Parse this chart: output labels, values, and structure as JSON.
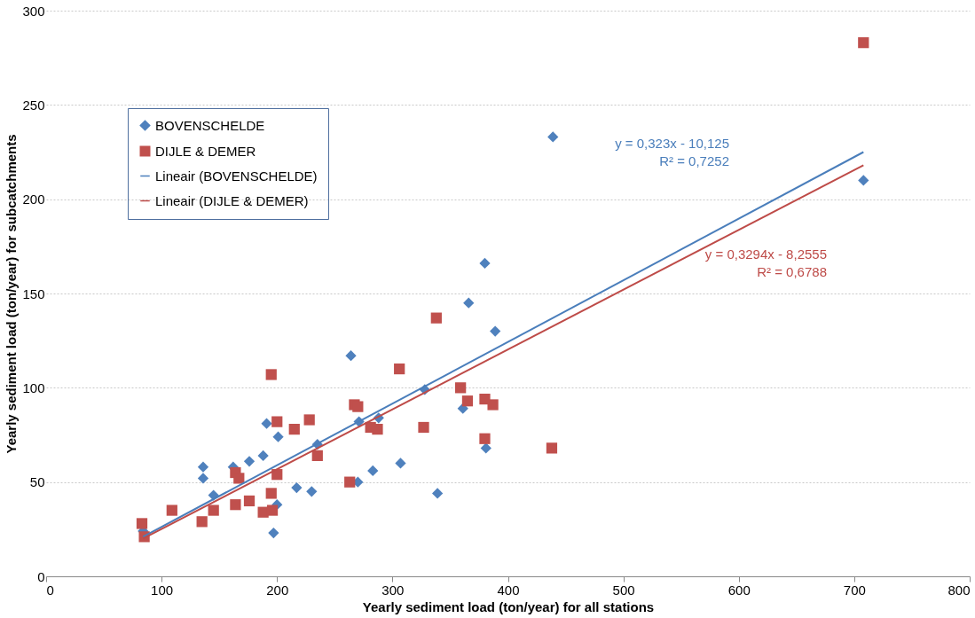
{
  "chart_data": {
    "type": "scatter",
    "xlabel": "Yearly sediment load (ton/year) for all stations",
    "ylabel": "Yearly sediment load (ton/year) for subcatchments",
    "xlim": [
      0,
      800
    ],
    "xticks": [
      0,
      100,
      200,
      300,
      400,
      500,
      600,
      700,
      800
    ],
    "ylim": [
      0,
      300
    ],
    "yticks": [
      0,
      50,
      100,
      150,
      200,
      250,
      300
    ],
    "grid": "y",
    "legend": "top left",
    "series": [
      {
        "name": "BOVENSCHELDE",
        "marker": "diamond",
        "color": "#4f81bd",
        "x": [
          84,
          136,
          136,
          145,
          162,
          176,
          188,
          191,
          201,
          197,
          200,
          217,
          230,
          235,
          264,
          270,
          271,
          288,
          283,
          307,
          328,
          339,
          361,
          366,
          380,
          389,
          381,
          439,
          708
        ],
        "values": [
          24,
          58,
          52,
          43,
          58,
          61,
          64,
          81,
          74,
          23,
          38,
          47,
          45,
          70,
          117,
          50,
          82,
          84,
          56,
          60,
          99,
          44,
          89,
          145,
          166,
          130,
          68,
          233,
          210
        ]
      },
      {
        "name": "DIJLE & DEMER",
        "marker": "square",
        "color": "#c0504d",
        "x": [
          83,
          85,
          109,
          135,
          145,
          164,
          164,
          167,
          176,
          188,
          196,
          195,
          195,
          200,
          200,
          215,
          228,
          235,
          263,
          267,
          270,
          281,
          287,
          306,
          327,
          338,
          359,
          365,
          380,
          387,
          380,
          438,
          708
        ],
        "values": [
          28,
          21,
          35,
          29,
          35,
          38,
          55,
          52,
          40,
          34,
          35,
          44,
          107,
          82,
          54,
          78,
          83,
          64,
          50,
          91,
          90,
          79,
          78,
          110,
          79,
          137,
          100,
          93,
          94,
          91,
          73,
          68,
          283
        ]
      },
      {
        "name": "Lineair (BOVENSCHELDE)",
        "type": "line",
        "color": "#4a7ebb",
        "x": [
          84,
          708
        ],
        "values": [
          21,
          225
        ]
      },
      {
        "name": "Lineair (DIJLE & DEMER)",
        "type": "line",
        "color": "#be4b48",
        "x": [
          84,
          708
        ],
        "values": [
          20,
          218
        ]
      }
    ],
    "annotations": [
      "y = 0,323x - 10,125\nR² = 0,7252",
      "y = 0,3294x - 8,2555\nR² = 0,6788"
    ]
  }
}
